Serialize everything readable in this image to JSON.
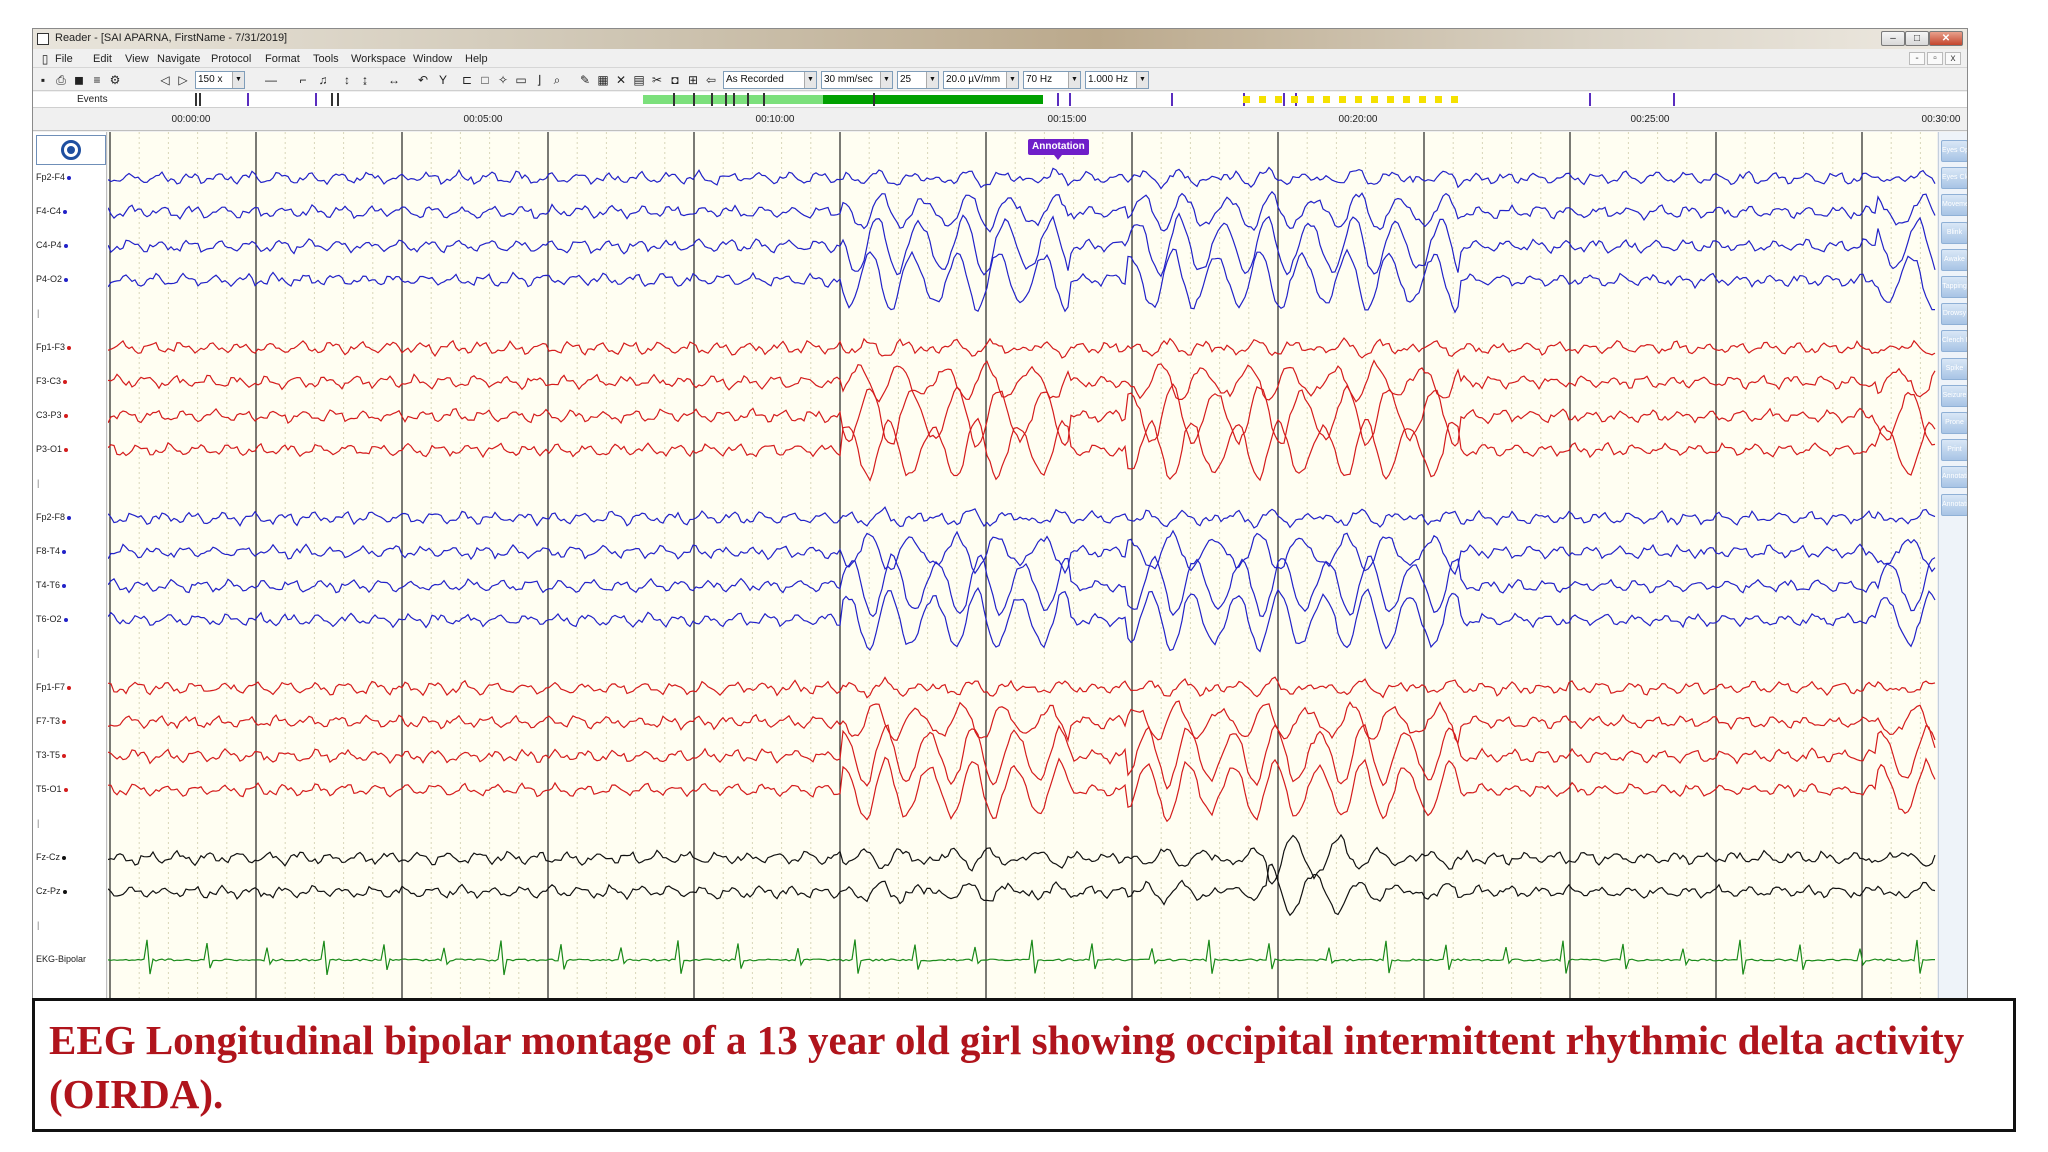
{
  "window": {
    "title": "Reader - [SAI APARNA, FirstName - 7/31/2019]",
    "controls": {
      "minimize": "–",
      "maximize": "□",
      "close": "✕"
    }
  },
  "menu": [
    "File",
    "Edit",
    "View",
    "Navigate",
    "Protocol",
    "Format",
    "Tools",
    "Workspace",
    "Window",
    "Help"
  ],
  "mdi_controls": [
    "-",
    "▫",
    "x"
  ],
  "toolbar": {
    "zoom": "150 x",
    "mode": "As Recorded",
    "speed": "30 mm/sec",
    "sensitivity_step": "25",
    "sensitivity": "20.0 µV/mm",
    "high_filter": "70 Hz",
    "low_filter": "1.000 Hz"
  },
  "events_bar": {
    "label": "Events",
    "colors": {
      "progress": "#00a000",
      "progress_light": "#7ce07c",
      "marker": "#5a2dbf",
      "yellow": "#f5e100"
    }
  },
  "timeline": {
    "ticks": [
      "00:00:00",
      "00:05:00",
      "00:10:00",
      "00:15:00",
      "00:20:00",
      "00:25:00",
      "00:30:00"
    ]
  },
  "channels": [
    {
      "label": "Fp2-F4",
      "color": "#2222c8"
    },
    {
      "label": "F4-C4",
      "color": "#2222c8"
    },
    {
      "label": "C4-P4",
      "color": "#2222c8"
    },
    {
      "label": "P4-O2",
      "color": "#2222c8"
    },
    {
      "label": "Fp1-F3",
      "color": "#d41c1c"
    },
    {
      "label": "F3-C3",
      "color": "#d41c1c"
    },
    {
      "label": "C3-P3",
      "color": "#d41c1c"
    },
    {
      "label": "P3-O1",
      "color": "#d41c1c"
    },
    {
      "label": "Fp2-F8",
      "color": "#2222c8"
    },
    {
      "label": "F8-T4",
      "color": "#2222c8"
    },
    {
      "label": "T4-T6",
      "color": "#2222c8"
    },
    {
      "label": "T6-O2",
      "color": "#2222c8"
    },
    {
      "label": "Fp1-F7",
      "color": "#d41c1c"
    },
    {
      "label": "F7-T3",
      "color": "#d41c1c"
    },
    {
      "label": "T3-T5",
      "color": "#d41c1c"
    },
    {
      "label": "T5-O1",
      "color": "#d41c1c"
    },
    {
      "label": "Fz-Cz",
      "color": "#111111"
    },
    {
      "label": "Cz-Pz",
      "color": "#111111"
    },
    {
      "label": "EKG-Bipolar",
      "color": "#1a8a1a"
    }
  ],
  "annotation": "Annotation",
  "event_buttons": [
    "Eyes Ope",
    "Eyes Clo",
    "Movemer",
    "Blink",
    "Awake",
    "Tapping",
    "Drowsy",
    "Clench F",
    "Spike",
    "Seizure",
    "Prone",
    "Print",
    "Annotati",
    "Annotati"
  ],
  "caption": "EEG Longitudinal bipolar montage of  a 13 year old girl showing occipital  intermittent rhythmic delta activity (OIRDA)."
}
